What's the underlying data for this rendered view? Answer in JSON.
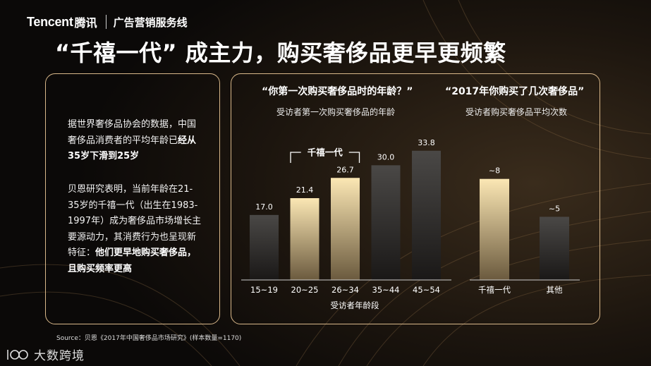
{
  "header": {
    "logo_en": "Tencent",
    "logo_cn": "腾讯",
    "department": "广告营销服务线"
  },
  "title": "“千禧一代” 成主力，购买奢侈品更早更频繁",
  "left_panel": {
    "para1_plain": "据世界奢侈品协会的数据，中国奢侈品消费者的平均年龄已",
    "para1_bold": "经从35岁下滑到25岁",
    "para2_plain": "贝恩研究表明，当前年龄在21-35岁的千禧一代（出生在1983-1997年）成为奢侈品市场增长主要源动力，其消费行为也呈现新特征：",
    "para2_bold": "他们更早地购买奢侈品，且购买频率更高"
  },
  "chart_data": [
    {
      "type": "bar",
      "title": "“你第一次购买奢侈品时的年龄？”",
      "subtitle": "受访者第一次购买奢侈品的年龄",
      "xlabel": "受访者年龄段",
      "ylabel": "",
      "categories": [
        "15~19",
        "20~25",
        "26~34",
        "35~44",
        "45~54"
      ],
      "values": [
        17.0,
        21.4,
        26.7,
        30.0,
        33.8
      ],
      "data_labels": [
        "17.0",
        "21.4",
        "26.7",
        "30.0",
        "33.8"
      ],
      "ylim": [
        0,
        38
      ],
      "highlight": [
        false,
        true,
        true,
        false,
        false
      ],
      "bracket_label": "千禧一代",
      "grid": false,
      "colors": {
        "highlight": "#fbe7b4",
        "normal": "#4a4846"
      }
    },
    {
      "type": "bar",
      "title": "“2017年你购买了几次奢侈品”",
      "subtitle": "受访者购买奢侈品平均次数",
      "xlabel": "",
      "ylabel": "",
      "categories": [
        "千禧一代",
        "其他"
      ],
      "values": [
        8,
        5
      ],
      "data_labels": [
        "~8",
        "~5"
      ],
      "ylim": [
        0,
        11.5
      ],
      "highlight": [
        true,
        false
      ],
      "grid": false,
      "colors": {
        "highlight": "#fbe7b4",
        "normal": "#4a4846"
      }
    }
  ],
  "source": "Source：贝恩《2017年中国奢侈品市场研究》(样本数量=1170)",
  "watermark": {
    "text": "大数跨境",
    "icon": "brand-logo-icon"
  }
}
